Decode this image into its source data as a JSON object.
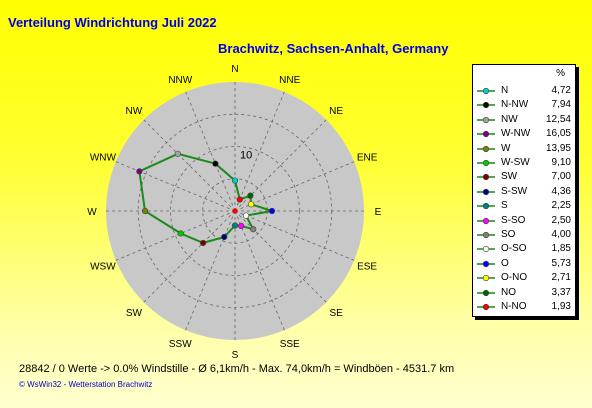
{
  "header": {
    "title": "Verteilung Windrichtung   Juli 2022",
    "subtitle": "Brachwitz, Sachsen-Anhalt, Germany"
  },
  "footer": {
    "stats": "28842 / 0 Werte  -> 0.0% Windstille   -   Ø 6,1km/h   -  Max. 74,0km/h = Windböen   -   4531.7 km",
    "credit": "© WsWin32  -  Wetterstation Brachwitz"
  },
  "legend": {
    "unit_header": "%"
  },
  "colors": {
    "series_line": "#1a8a1a",
    "rose_fill": "#c8c8c8",
    "grid": "#666666",
    "title_text": "#0000e6"
  },
  "chart_data": {
    "type": "radar",
    "title": "Verteilung Windrichtung   Juli 2022",
    "subtitle": "Brachwitz, Sachsen-Anhalt, Germany",
    "unit": "%",
    "radial_max": 20,
    "radial_ticks": [
      10
    ],
    "grid": true,
    "legend_position": "right",
    "compass_labels": [
      "N",
      "NNE",
      "NE",
      "ENE",
      "E",
      "ESE",
      "SE",
      "SSE",
      "S",
      "SSW",
      "SW",
      "WSW",
      "W",
      "WNW",
      "NW",
      "NNW"
    ],
    "compass_angles_deg": [
      0,
      22.5,
      45,
      67.5,
      90,
      112.5,
      135,
      157.5,
      180,
      202.5,
      225,
      247.5,
      270,
      292.5,
      315,
      337.5
    ],
    "entries": [
      {
        "label": "N",
        "value": 4.72,
        "display": "4,72",
        "angle": 0,
        "marker": "#00cccc"
      },
      {
        "label": "N-NW",
        "value": 7.94,
        "display": "7,94",
        "angle": 337.5,
        "marker": "#000000"
      },
      {
        "label": "NW",
        "value": 12.54,
        "display": "12,54",
        "angle": 315,
        "marker": "#a0a0a0"
      },
      {
        "label": "W-NW",
        "value": 16.05,
        "display": "16,05",
        "angle": 292.5,
        "marker": "#800080"
      },
      {
        "label": "W",
        "value": 13.95,
        "display": "13,95",
        "angle": 270,
        "marker": "#808000"
      },
      {
        "label": "W-SW",
        "value": 9.1,
        "display": "9,10",
        "angle": 247.5,
        "marker": "#00cc00"
      },
      {
        "label": "SW",
        "value": 7.0,
        "display": "7,00",
        "angle": 225,
        "marker": "#800000"
      },
      {
        "label": "S-SW",
        "value": 4.36,
        "display": "4,36",
        "angle": 202.5,
        "marker": "#000080"
      },
      {
        "label": "S",
        "value": 2.25,
        "display": "2,25",
        "angle": 180,
        "marker": "#008080"
      },
      {
        "label": "S-SO",
        "value": 2.5,
        "display": "2,50",
        "angle": 157.5,
        "marker": "#ff00ff"
      },
      {
        "label": "SO",
        "value": 4.0,
        "display": "4,00",
        "angle": 135,
        "marker": "#808080"
      },
      {
        "label": "O-SO",
        "value": 1.85,
        "display": "1,85",
        "angle": 112.5,
        "marker": "#ffffff"
      },
      {
        "label": "O",
        "value": 5.73,
        "display": "5,73",
        "angle": 90,
        "marker": "#0000ff"
      },
      {
        "label": "O-NO",
        "value": 2.71,
        "display": "2,71",
        "angle": 67.5,
        "marker": "#ffff00"
      },
      {
        "label": "NO",
        "value": 3.37,
        "display": "3,37",
        "angle": 45,
        "marker": "#006400"
      },
      {
        "label": "N-NO",
        "value": 1.93,
        "display": "1,93",
        "angle": 22.5,
        "marker": "#ff0000"
      }
    ]
  }
}
